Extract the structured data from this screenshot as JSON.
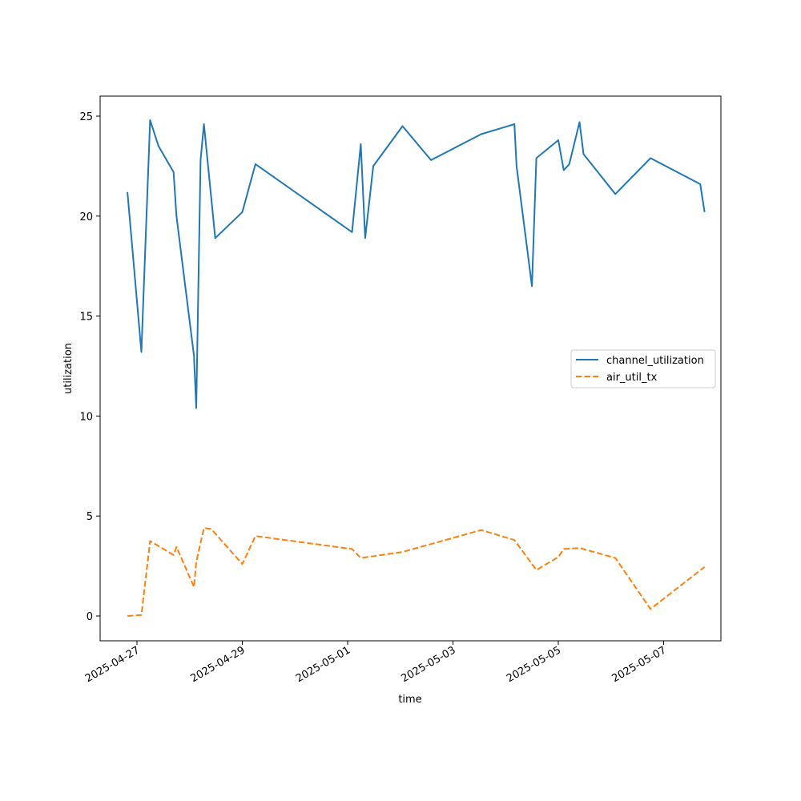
{
  "chart_data": {
    "type": "line",
    "title": "",
    "xlabel": "time",
    "ylabel": "utilization",
    "xlim": [
      "2026-04-26T13:00",
      "2025-05-08T00:00"
    ],
    "ylim": [
      -1.3,
      26
    ],
    "x_ticks": [
      "2025-04-27",
      "2025-04-29",
      "2025-05-01",
      "2025-05-03",
      "2025-05-05",
      "2025-05-07"
    ],
    "y_ticks": [
      0,
      5,
      10,
      15,
      20,
      25
    ],
    "grid": false,
    "legend_position": "center-right",
    "series": [
      {
        "name": "channel_utilization",
        "color": "#1f77b4",
        "style": "solid",
        "points": [
          [
            "2025-04-26T19:40",
            21.2
          ],
          [
            "2025-04-27T02:00",
            13.2
          ],
          [
            "2025-04-27T06:00",
            24.8
          ],
          [
            "2025-04-27T09:50",
            23.5
          ],
          [
            "2025-04-27T16:40",
            22.2
          ],
          [
            "2025-04-27T18:00",
            20.0
          ],
          [
            "2025-04-28T02:00",
            13.0
          ],
          [
            "2025-04-28T03:00",
            10.4
          ],
          [
            "2025-04-28T05:00",
            22.8
          ],
          [
            "2025-04-28T06:30",
            24.6
          ],
          [
            "2025-04-28T11:40",
            18.9
          ],
          [
            "2025-04-29T00:00",
            20.2
          ],
          [
            "2025-04-29T06:00",
            22.6
          ],
          [
            "2025-05-01T02:00",
            19.2
          ],
          [
            "2025-05-01T06:00",
            23.6
          ],
          [
            "2025-05-01T08:00",
            18.9
          ],
          [
            "2025-05-01T11:40",
            22.5
          ],
          [
            "2025-05-02T01:00",
            24.5
          ],
          [
            "2025-05-02T14:00",
            22.8
          ],
          [
            "2025-05-03T12:50",
            24.1
          ],
          [
            "2025-05-04T04:00",
            24.6
          ],
          [
            "2025-05-04T05:00",
            22.5
          ],
          [
            "2025-05-04T12:00",
            16.5
          ],
          [
            "2025-05-04T14:00",
            22.9
          ],
          [
            "2025-05-05T00:00",
            23.8
          ],
          [
            "2025-05-05T02:30",
            22.3
          ],
          [
            "2025-05-05T05:00",
            22.6
          ],
          [
            "2025-05-05T09:40",
            24.7
          ],
          [
            "2025-05-05T11:30",
            23.1
          ],
          [
            "2025-05-06T02:00",
            21.1
          ],
          [
            "2025-05-06T18:00",
            22.9
          ],
          [
            "2025-05-07T16:40",
            21.6
          ],
          [
            "2025-05-07T18:40",
            20.2
          ]
        ]
      },
      {
        "name": "air_util_tx",
        "color": "#ff7f0e",
        "style": "dashed",
        "points": [
          [
            "2025-04-26T19:40",
            0.0
          ],
          [
            "2025-04-27T02:00",
            0.05
          ],
          [
            "2025-04-27T06:00",
            3.75
          ],
          [
            "2025-04-27T16:40",
            3.05
          ],
          [
            "2025-04-27T18:00",
            3.45
          ],
          [
            "2025-04-28T02:00",
            1.45
          ],
          [
            "2025-04-28T03:00",
            2.7
          ],
          [
            "2025-04-28T06:30",
            4.4
          ],
          [
            "2025-04-28T09:50",
            4.35
          ],
          [
            "2025-04-29T00:00",
            2.6
          ],
          [
            "2025-04-29T06:00",
            4.0
          ],
          [
            "2025-05-01T02:00",
            3.35
          ],
          [
            "2025-05-01T06:00",
            2.9
          ],
          [
            "2025-05-02T01:00",
            3.2
          ],
          [
            "2025-05-03T12:50",
            4.3
          ],
          [
            "2025-05-04T04:00",
            3.8
          ],
          [
            "2025-05-04T14:00",
            2.3
          ],
          [
            "2025-05-05T00:00",
            2.95
          ],
          [
            "2025-05-05T02:30",
            3.35
          ],
          [
            "2025-05-05T09:40",
            3.4
          ],
          [
            "2025-05-06T02:00",
            2.9
          ],
          [
            "2025-05-06T18:00",
            0.35
          ],
          [
            "2025-05-07T18:40",
            2.45
          ]
        ]
      }
    ]
  }
}
